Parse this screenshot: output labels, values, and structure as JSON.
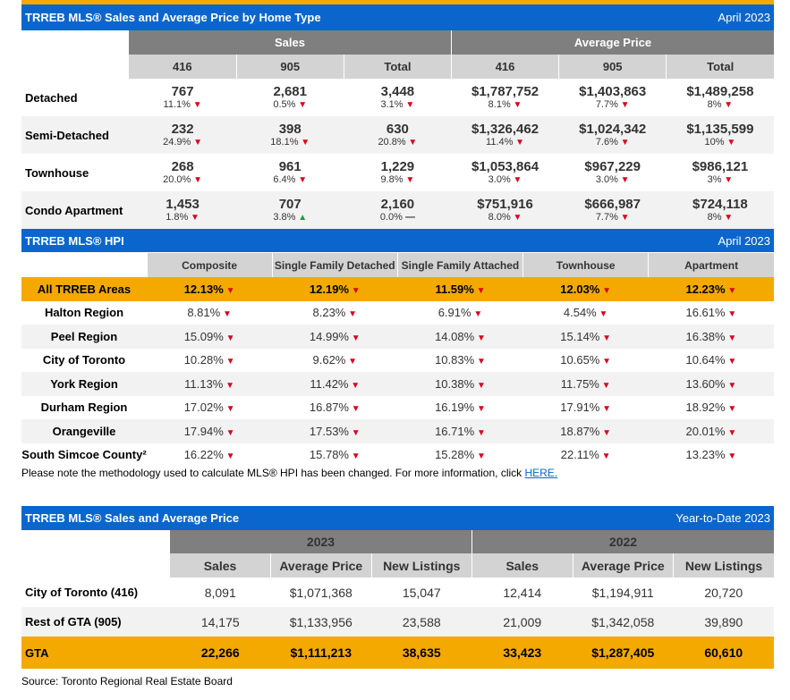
{
  "sales_by_type": {
    "title": "TRREB MLS® Sales and Average Price by Home Type",
    "period": "April 2023",
    "group_sales": "Sales",
    "group_price": "Average Price",
    "cols": [
      "416",
      "905",
      "Total",
      "416",
      "905",
      "Total"
    ],
    "rows": [
      {
        "label": "Detached",
        "cells": [
          {
            "v": "767",
            "p": "11.1%",
            "d": "down"
          },
          {
            "v": "2,681",
            "p": "0.5%",
            "d": "down"
          },
          {
            "v": "3,448",
            "p": "3.1%",
            "d": "down"
          },
          {
            "v": "$1,787,752",
            "p": "8.1%",
            "d": "down"
          },
          {
            "v": "$1,403,863",
            "p": "7.7%",
            "d": "down"
          },
          {
            "v": "$1,489,258",
            "p": "8%",
            "d": "down"
          }
        ]
      },
      {
        "label": "Semi-Detached",
        "cells": [
          {
            "v": "232",
            "p": "24.9%",
            "d": "down"
          },
          {
            "v": "398",
            "p": "18.1%",
            "d": "down"
          },
          {
            "v": "630",
            "p": "20.8%",
            "d": "down"
          },
          {
            "v": "$1,326,462",
            "p": "11.4%",
            "d": "down"
          },
          {
            "v": "$1,024,342",
            "p": "7.6%",
            "d": "down"
          },
          {
            "v": "$1,135,599",
            "p": "10%",
            "d": "down"
          }
        ]
      },
      {
        "label": "Townhouse",
        "cells": [
          {
            "v": "268",
            "p": "20.0%",
            "d": "down"
          },
          {
            "v": "961",
            "p": "6.4%",
            "d": "down"
          },
          {
            "v": "1,229",
            "p": "9.8%",
            "d": "down"
          },
          {
            "v": "$1,053,864",
            "p": "3.0%",
            "d": "down"
          },
          {
            "v": "$967,229",
            "p": "3.0%",
            "d": "down"
          },
          {
            "v": "$986,121",
            "p": "3%",
            "d": "down"
          }
        ]
      },
      {
        "label": "Condo Apartment",
        "cells": [
          {
            "v": "1,453",
            "p": "1.8%",
            "d": "down"
          },
          {
            "v": "707",
            "p": "3.8%",
            "d": "up"
          },
          {
            "v": "2,160",
            "p": "0.0%",
            "d": "flat"
          },
          {
            "v": "$751,916",
            "p": "8.0%",
            "d": "down"
          },
          {
            "v": "$666,987",
            "p": "7.7%",
            "d": "down"
          },
          {
            "v": "$724,118",
            "p": "8%",
            "d": "down"
          }
        ]
      }
    ]
  },
  "hpi": {
    "title": "TRREB MLS® HPI",
    "period": "April 2023",
    "cols": [
      "Composite",
      "Single Family Detached",
      "Single Family Attached",
      "Townhouse",
      "Apartment"
    ],
    "rows": [
      {
        "label": "All TRREB Areas",
        "vals": [
          "12.13%",
          "12.19%",
          "11.59%",
          "12.03%",
          "12.23%"
        ]
      },
      {
        "label": "Halton Region",
        "vals": [
          "8.81%",
          "8.23%",
          "6.91%",
          "4.54%",
          "16.61%"
        ]
      },
      {
        "label": "Peel Region",
        "vals": [
          "15.09%",
          "14.99%",
          "14.08%",
          "15.14%",
          "16.38%"
        ]
      },
      {
        "label": "City of Toronto",
        "vals": [
          "10.28%",
          "9.62%",
          "10.83%",
          "10.65%",
          "10.64%"
        ]
      },
      {
        "label": "York Region",
        "vals": [
          "11.13%",
          "11.42%",
          "10.38%",
          "11.75%",
          "13.60%"
        ]
      },
      {
        "label": "Durham Region",
        "vals": [
          "17.02%",
          "16.87%",
          "16.19%",
          "17.91%",
          "18.92%"
        ]
      },
      {
        "label": "Orangeville",
        "vals": [
          "17.94%",
          "17.53%",
          "16.71%",
          "18.87%",
          "20.01%"
        ]
      },
      {
        "label": "South Simcoe County²",
        "vals": [
          "16.22%",
          "15.78%",
          "15.28%",
          "22.11%",
          "13.23%"
        ]
      }
    ],
    "note": "Please note the methodology used to calculate MLS® HPI has been changed. For more information, click",
    "note_link": "HERE."
  },
  "ytd": {
    "title": "TRREB MLS® Sales and Average Price",
    "period": "Year-to-Date 2023",
    "year_a": "2023",
    "year_b": "2022",
    "cols": [
      "Sales",
      "Average Price",
      "New Listings",
      "Sales",
      "Average Price",
      "New Listings"
    ],
    "rows": [
      {
        "label": "City of Toronto (416)",
        "vals": [
          "8,091",
          "$1,071,368",
          "15,047",
          "12,414",
          "$1,194,911",
          "20,720"
        ]
      },
      {
        "label": "Rest of GTA (905)",
        "vals": [
          "14,175",
          "$1,133,956",
          "23,588",
          "21,009",
          "$1,342,058",
          "39,890"
        ]
      },
      {
        "label": "GTA",
        "vals": [
          "22,266",
          "$1,111,213",
          "38,635",
          "33,423",
          "$1,287,405",
          "60,610"
        ]
      }
    ]
  },
  "source": "Source: Toronto Regional Real Estate Board",
  "glyphs": {
    "down": "▼",
    "up": "▲",
    "flat": "—"
  },
  "colors": {
    "header_blue": "#0a66cc",
    "highlight_orange": "#f4a900",
    "down_red": "#d9001b",
    "up_green": "#1a9e3a"
  }
}
